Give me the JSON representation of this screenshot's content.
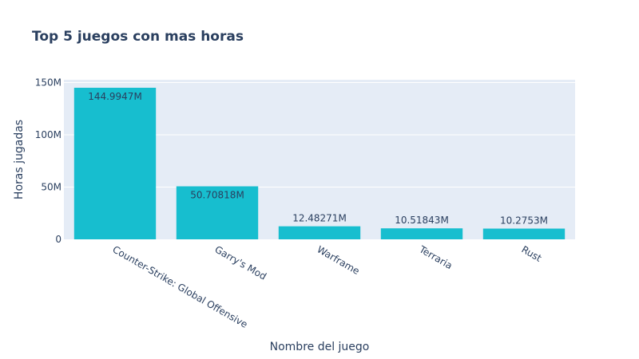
{
  "chart_data": {
    "type": "bar",
    "title": "Top 5 juegos con mas horas",
    "xlabel": "Nombre del juego",
    "ylabel": "Horas jugadas",
    "categories": [
      "Counter-Strike: Global Offensive",
      "Garry's Mod",
      "Warframe",
      "Terraria",
      "Rust"
    ],
    "values": [
      144994700,
      50708180,
      12482710,
      10518430,
      10275300
    ],
    "data_labels": [
      "144.9947M",
      "50.70818M",
      "12.48271M",
      "10.51843M",
      "10.2753M"
    ],
    "ylim": [
      0,
      152630000
    ],
    "yticks": [
      0,
      50000000,
      100000000,
      150000000
    ],
    "ytick_labels": [
      "0",
      "50M",
      "100M",
      "150M"
    ],
    "grid": true,
    "colors": {
      "bar": "#17becf",
      "plot_bg": "#e5ecf6",
      "grid": "#ffffff",
      "text": "#2a3f5f"
    }
  }
}
